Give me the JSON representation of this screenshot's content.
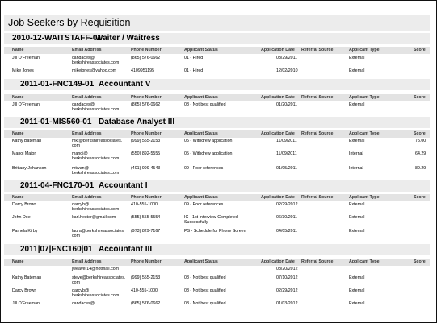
{
  "report": {
    "title": "Job Seekers by Requisition"
  },
  "columns": {
    "name": "Name",
    "email": "Email Address",
    "phone": "Phone Number",
    "status": "Applicant Status",
    "date": "Application Date",
    "referral": "Referral Source",
    "type": "Applicant Type",
    "score": "Score"
  },
  "requisitions": [
    {
      "code": "2010-12-WAITSTAFF-01",
      "title": "Waiter / Waitress",
      "rows": [
        {
          "name": "Jill O'Freeman",
          "email": "candaces@\nberkshireassociates.com",
          "phone": "(865) 576-0662",
          "status": "01 - Hired",
          "date": "03/29/2011",
          "referral": "",
          "type": "External",
          "score": ""
        },
        {
          "name": "Mike Jones",
          "email": "mikejones@yahoo.com",
          "phone": "4109951195",
          "status": "01 - Hired",
          "date": "12/02/2010",
          "referral": "",
          "type": "External",
          "score": ""
        }
      ]
    },
    {
      "code": "2011-01-FNC149-01",
      "title": "Accountant V",
      "rows": [
        {
          "name": "Jill O'Freeman",
          "email": "candaces@\nberkshireassociates.com",
          "phone": "(865) 576-0662",
          "status": "08 - Not best qualified",
          "date": "01/20/2011",
          "referral": "",
          "type": "External",
          "score": ""
        }
      ]
    },
    {
      "code": "2011-01-MIS560-01",
      "title": "Database Analyst III",
      "rows": [
        {
          "name": "Kathy Bateman",
          "email": "mkt@berkshireassociates.\ncom",
          "phone": "(999) 555-2153",
          "status": "05 - Withdrew application",
          "date": "11/09/2011",
          "referral": "",
          "type": "External",
          "score": "75.00"
        },
        {
          "name": "Manoj Major",
          "email": "manoj@\nberkshireassociates.com",
          "phone": "(550) 892-5555",
          "status": "05 - Withdrew application",
          "date": "11/09/2011",
          "referral": "",
          "type": "Internal",
          "score": "64.29"
        },
        {
          "name": "Brittany Johanson",
          "email": "mtwan@\nberkshireassociates.com",
          "phone": "(401) 999-4543",
          "status": "09 - Poor references",
          "date": "01/05/2011",
          "referral": "",
          "type": "Internal",
          "score": "89.29"
        }
      ]
    },
    {
      "code": "2011-04-FNC170-01",
      "title": "Accountant I",
      "rows": [
        {
          "name": "Darcy Brown",
          "email": "darcyb@\nberkshireassociates.com",
          "phone": "410-555-1000",
          "status": "09 - Poor references",
          "date": "02/29/2012",
          "referral": "",
          "type": "External",
          "score": ""
        },
        {
          "name": "John Doe",
          "email": "karl.hester@gmail.com",
          "phone": "(555) 555-5554",
          "status": "IC - 1st Interview Completed\nSuccessfully",
          "date": "06/30/2011",
          "referral": "",
          "type": "External",
          "score": ""
        },
        {
          "name": "Pamela Kirby",
          "email": "laura@berkshireassociates.\ncom",
          "phone": "(973) 829-7167",
          "status": "PS - Schedule for Phone Screen",
          "date": "04/05/2011",
          "referral": "",
          "type": "External",
          "score": ""
        }
      ]
    },
    {
      "code": "2011|07|FNC160|01",
      "title": "Accountant III",
      "rows": [
        {
          "name": "",
          "email": "jweaver14@hotmail.com",
          "phone": "",
          "status": "",
          "date": "08/20/2012",
          "referral": "",
          "type": "",
          "score": ""
        },
        {
          "name": "Kathy Bateman",
          "email": "steve@berkshireassociates.\ncom",
          "phone": "(999) 555-2153",
          "status": "08 - Not best qualified",
          "date": "07/10/2012",
          "referral": "",
          "type": "External",
          "score": ""
        },
        {
          "name": "Darcy Brown",
          "email": "darcyb@\nberkshireassociates.com",
          "phone": "410-555-1000",
          "status": "08 - Not best qualified",
          "date": "02/29/2012",
          "referral": "",
          "type": "External",
          "score": ""
        },
        {
          "name": "Jill O'Freeman",
          "email": "candaces@",
          "phone": "(865) 576-0662",
          "status": "08 - Not best qualified",
          "date": "01/03/2012",
          "referral": "",
          "type": "External",
          "score": ""
        }
      ]
    }
  ]
}
